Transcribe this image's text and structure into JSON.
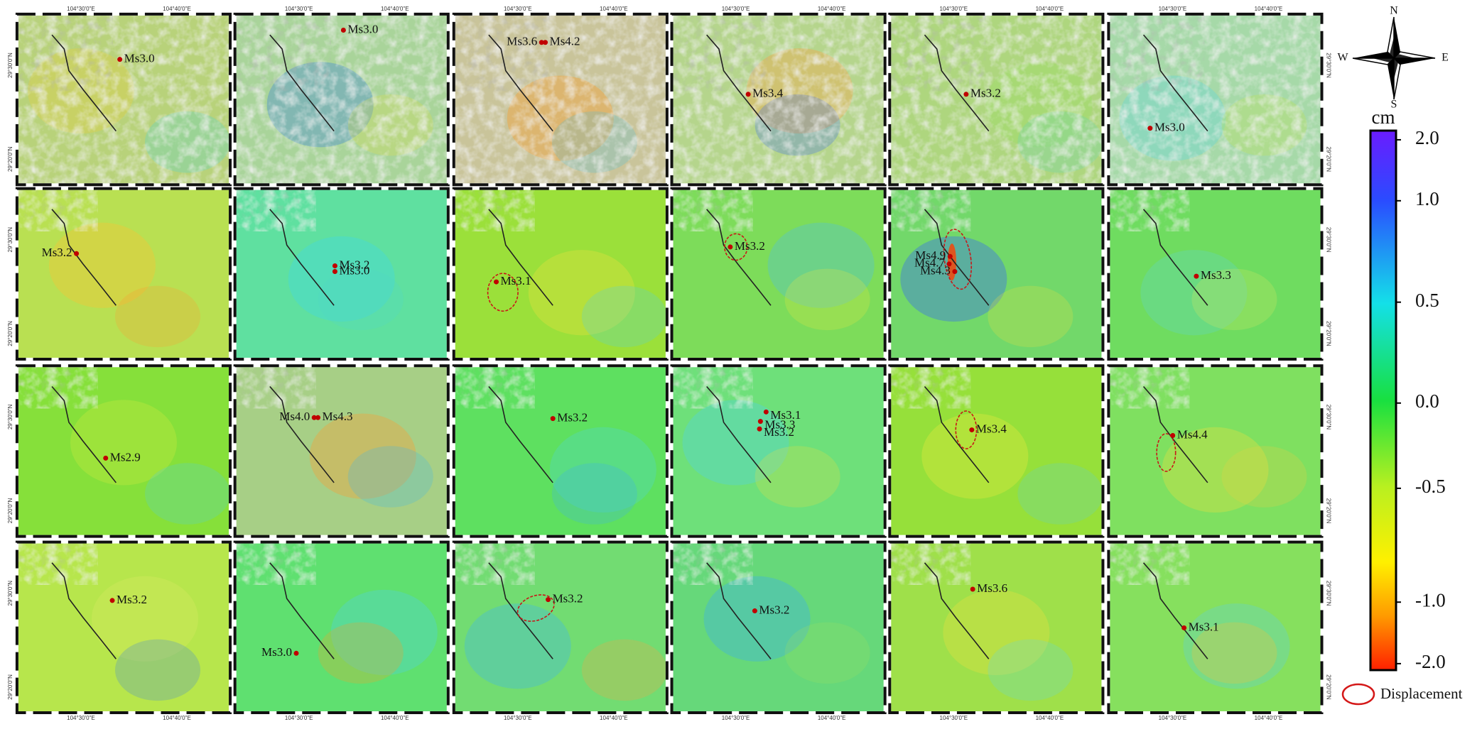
{
  "panels": [
    {
      "events": [
        "Ms3.0"
      ]
    },
    {
      "events": [
        "Ms3.0"
      ]
    },
    {
      "events": [
        "Ms3.6",
        "Ms4.2"
      ]
    },
    {
      "events": [
        "Ms3.4"
      ]
    },
    {
      "events": [
        "Ms3.2"
      ]
    },
    {
      "events": [
        "Ms3.0"
      ]
    },
    {
      "events": [
        "Ms3.2"
      ]
    },
    {
      "events": [
        "Ms3.2",
        "Ms3.0"
      ]
    },
    {
      "events": [
        "Ms3.1"
      ]
    },
    {
      "events": [
        "Ms3.2"
      ]
    },
    {
      "events": [
        "Ms4.9",
        "Ms4.7",
        "Ms4.3"
      ]
    },
    {
      "events": [
        "Ms3.3"
      ]
    },
    {
      "events": [
        "Ms2.9"
      ]
    },
    {
      "events": [
        "Ms4.0",
        "Ms4.3"
      ]
    },
    {
      "events": [
        "Ms3.2"
      ]
    },
    {
      "events": [
        "Ms3.1",
        "Ms3.3",
        "Ms3.2"
      ]
    },
    {
      "events": [
        "Ms3.4"
      ]
    },
    {
      "events": [
        "Ms4.4"
      ]
    },
    {
      "events": [
        "Ms3.2"
      ]
    },
    {
      "events": [
        "Ms3.0"
      ]
    },
    {
      "events": [
        "Ms3.2"
      ]
    },
    {
      "events": [
        "Ms3.2"
      ]
    },
    {
      "events": [
        "Ms3.6"
      ]
    },
    {
      "events": [
        "Ms3.1"
      ]
    }
  ],
  "lon_labels": [
    "104°30'0\"E",
    "104°40'0\"E"
  ],
  "lat_labels": [
    "29°30'0\"N",
    "29°20'0\"N"
  ],
  "colorbar": {
    "unit": "cm",
    "ticks": [
      {
        "value": 2,
        "label": "2.0"
      },
      {
        "value": 1,
        "label": "1.0"
      },
      0.5,
      {
        "value": 0,
        "label": "0.0"
      },
      -0.5,
      {
        "value": -1,
        "label": "-1.0"
      },
      {
        "value": -2,
        "label": "-2.0"
      }
    ]
  },
  "compass": {
    "north": "N",
    "east": "E",
    "south": "S",
    "west": "W"
  },
  "legend": {
    "label": "Displacement"
  }
}
